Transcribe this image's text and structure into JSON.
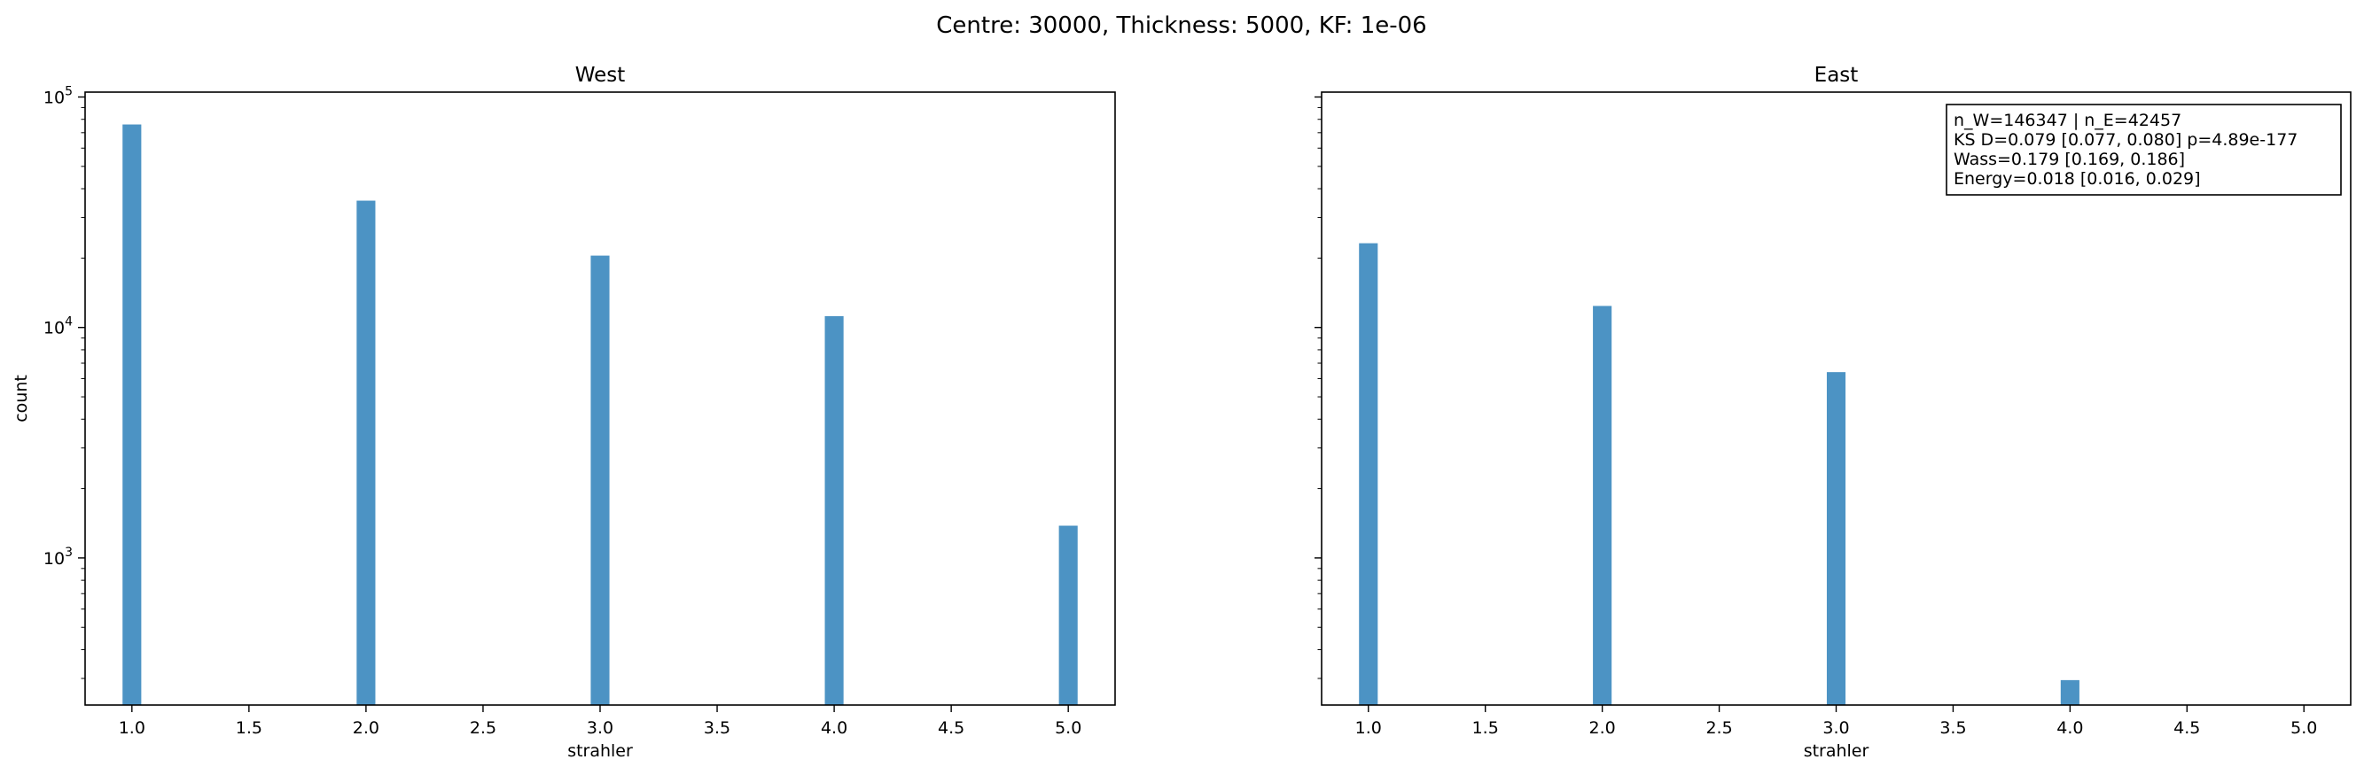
{
  "suptitle": "Centre: 30000, Thickness: 5000, KF: 1e-06",
  "bar_color": "#4c93c4",
  "chart_data": [
    {
      "type": "bar",
      "title": "West",
      "xlabel": "strahler",
      "ylabel": "count",
      "yscale": "log",
      "xlim": [
        0.8,
        5.2
      ],
      "ylim": [
        230,
        105000
      ],
      "xticks": [
        "1.0",
        "1.5",
        "2.0",
        "2.5",
        "3.0",
        "3.5",
        "4.0",
        "4.5",
        "5.0"
      ],
      "yticks": [
        {
          "base": "10",
          "exp": "3"
        },
        {
          "base": "10",
          "exp": "4"
        },
        {
          "base": "10",
          "exp": "5"
        }
      ],
      "x": [
        1,
        2,
        3,
        4,
        5
      ],
      "values": [
        76000,
        35500,
        20500,
        11200,
        1380
      ],
      "annotation": []
    },
    {
      "type": "bar",
      "title": "East",
      "xlabel": "strahler",
      "ylabel": "",
      "yscale": "log",
      "xlim": [
        0.8,
        5.2
      ],
      "ylim": [
        230,
        105000
      ],
      "xticks": [
        "1.0",
        "1.5",
        "2.0",
        "2.5",
        "3.0",
        "3.5",
        "4.0",
        "4.5",
        "5.0"
      ],
      "yticks": [],
      "x": [
        1,
        2,
        3,
        4,
        5
      ],
      "values": [
        23200,
        12400,
        6400,
        295,
        0
      ],
      "annotation": [
        "n_W=146347 | n_E=42457",
        "KS D=0.079 [0.077, 0.080]  p=4.89e-177",
        "Wass=0.179 [0.169, 0.186]",
        "Energy=0.018 [0.016, 0.029]"
      ]
    }
  ]
}
